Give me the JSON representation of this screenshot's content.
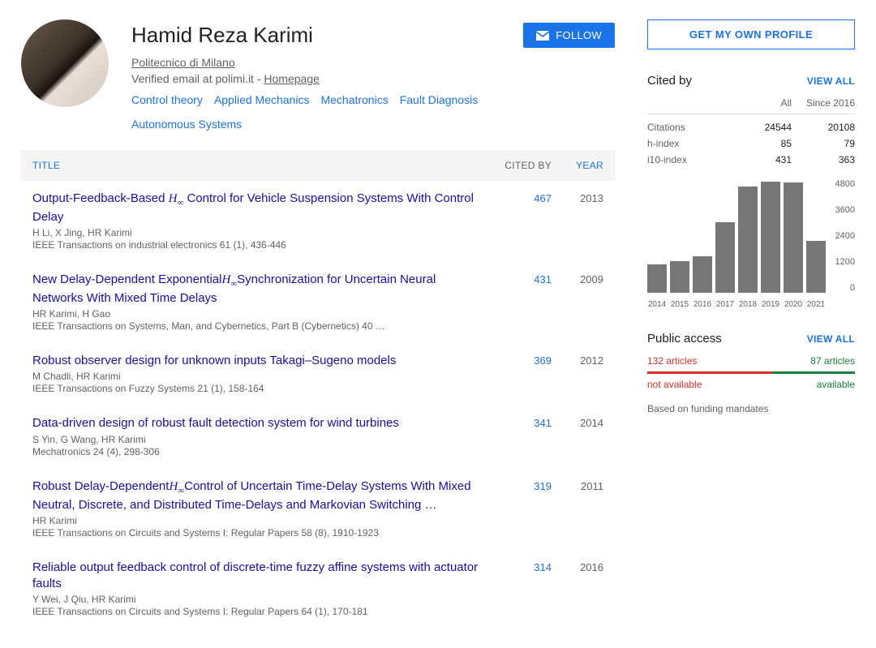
{
  "profile": {
    "name": "Hamid Reza Karimi",
    "affiliation": "Politecnico di Milano",
    "verified_prefix": "Verified email at polimi.it - ",
    "homepage_label": "Homepage",
    "topics": [
      "Control theory",
      "Applied Mechanics",
      "Mechatronics",
      "Fault Diagnosis",
      "Autonomous Systems"
    ],
    "follow_label": "FOLLOW"
  },
  "own_profile_label": "GET MY OWN PROFILE",
  "table_head": {
    "title": "TITLE",
    "cited": "CITED BY",
    "year": "YEAR"
  },
  "pubs": [
    {
      "title_pre": "Output-Feedback-Based ",
      "hinf": true,
      "title_post": " Control for Vehicle Suspension Systems With Control Delay",
      "authors": "H Li, X Jing, HR Karimi",
      "venue": "IEEE Transactions on industrial electronics 61 (1), 436-446",
      "cited": "467",
      "year": "2013"
    },
    {
      "title_pre": "New Delay-Dependent Exponential",
      "hinf": true,
      "title_post": "Synchronization for Uncertain Neural Networks With Mixed Time Delays",
      "authors": "HR Karimi, H Gao",
      "venue": "IEEE Transactions on Systems, Man, and Cybernetics, Part B (Cybernetics) 40 …",
      "cited": "431",
      "year": "2009"
    },
    {
      "title_pre": "Robust observer design for unknown inputs Takagi–Sugeno models",
      "hinf": false,
      "title_post": "",
      "authors": "M Chadli, HR Karimi",
      "venue": "IEEE Transactions on Fuzzy Systems 21 (1), 158-164",
      "cited": "369",
      "year": "2012"
    },
    {
      "title_pre": "Data-driven design of robust fault detection system for wind turbines",
      "hinf": false,
      "title_post": "",
      "authors": "S Yin, G Wang, HR Karimi",
      "venue": "Mechatronics 24 (4), 298-306",
      "cited": "341",
      "year": "2014"
    },
    {
      "title_pre": "Robust Delay-Dependent",
      "hinf": true,
      "title_post": "Control of Uncertain Time-Delay Systems With Mixed Neutral, Discrete, and Distributed Time-Delays and Markovian Switching …",
      "authors": "HR Karimi",
      "venue": "IEEE Transactions on Circuits and Systems I: Regular Papers 58 (8), 1910-1923",
      "cited": "319",
      "year": "2011"
    },
    {
      "title_pre": "Reliable output feedback control of discrete-time fuzzy affine systems with actuator faults",
      "hinf": false,
      "title_post": "",
      "authors": "Y Wei, J Qiu, HR Karimi",
      "venue": "IEEE Transactions on Circuits and Systems I: Regular Papers 64 (1), 170-181",
      "cited": "314",
      "year": "2016"
    }
  ],
  "cited_by": {
    "title": "Cited by",
    "view_all": "VIEW ALL",
    "col_all": "All",
    "col_since": "Since 2016",
    "rows": [
      {
        "label": "Citations",
        "all": "24544",
        "since": "20108"
      },
      {
        "label": "h-index",
        "all": "85",
        "since": "79"
      },
      {
        "label": "i10-index",
        "all": "431",
        "since": "363"
      }
    ]
  },
  "chart": {
    "type": "bar",
    "years": [
      "2014",
      "2015",
      "2016",
      "2017",
      "2018",
      "2019",
      "2020",
      "2021"
    ],
    "values": [
      1200,
      1350,
      1550,
      3000,
      4500,
      4700,
      4650,
      2200
    ],
    "ymax": 4800,
    "yticks": [
      "4800",
      "3600",
      "2400",
      "1200",
      "0"
    ],
    "bar_color": "#777777",
    "text_color": "#5f6368"
  },
  "public_access": {
    "title": "Public access",
    "view_all": "VIEW ALL",
    "not_available_count": "132 articles",
    "available_count": "87 articles",
    "not_available_label": "not available",
    "available_label": "available",
    "note": "Based on funding mandates",
    "red_pct": 60,
    "green_pct": 40,
    "red_color": "#d93025",
    "green_color": "#188038"
  }
}
